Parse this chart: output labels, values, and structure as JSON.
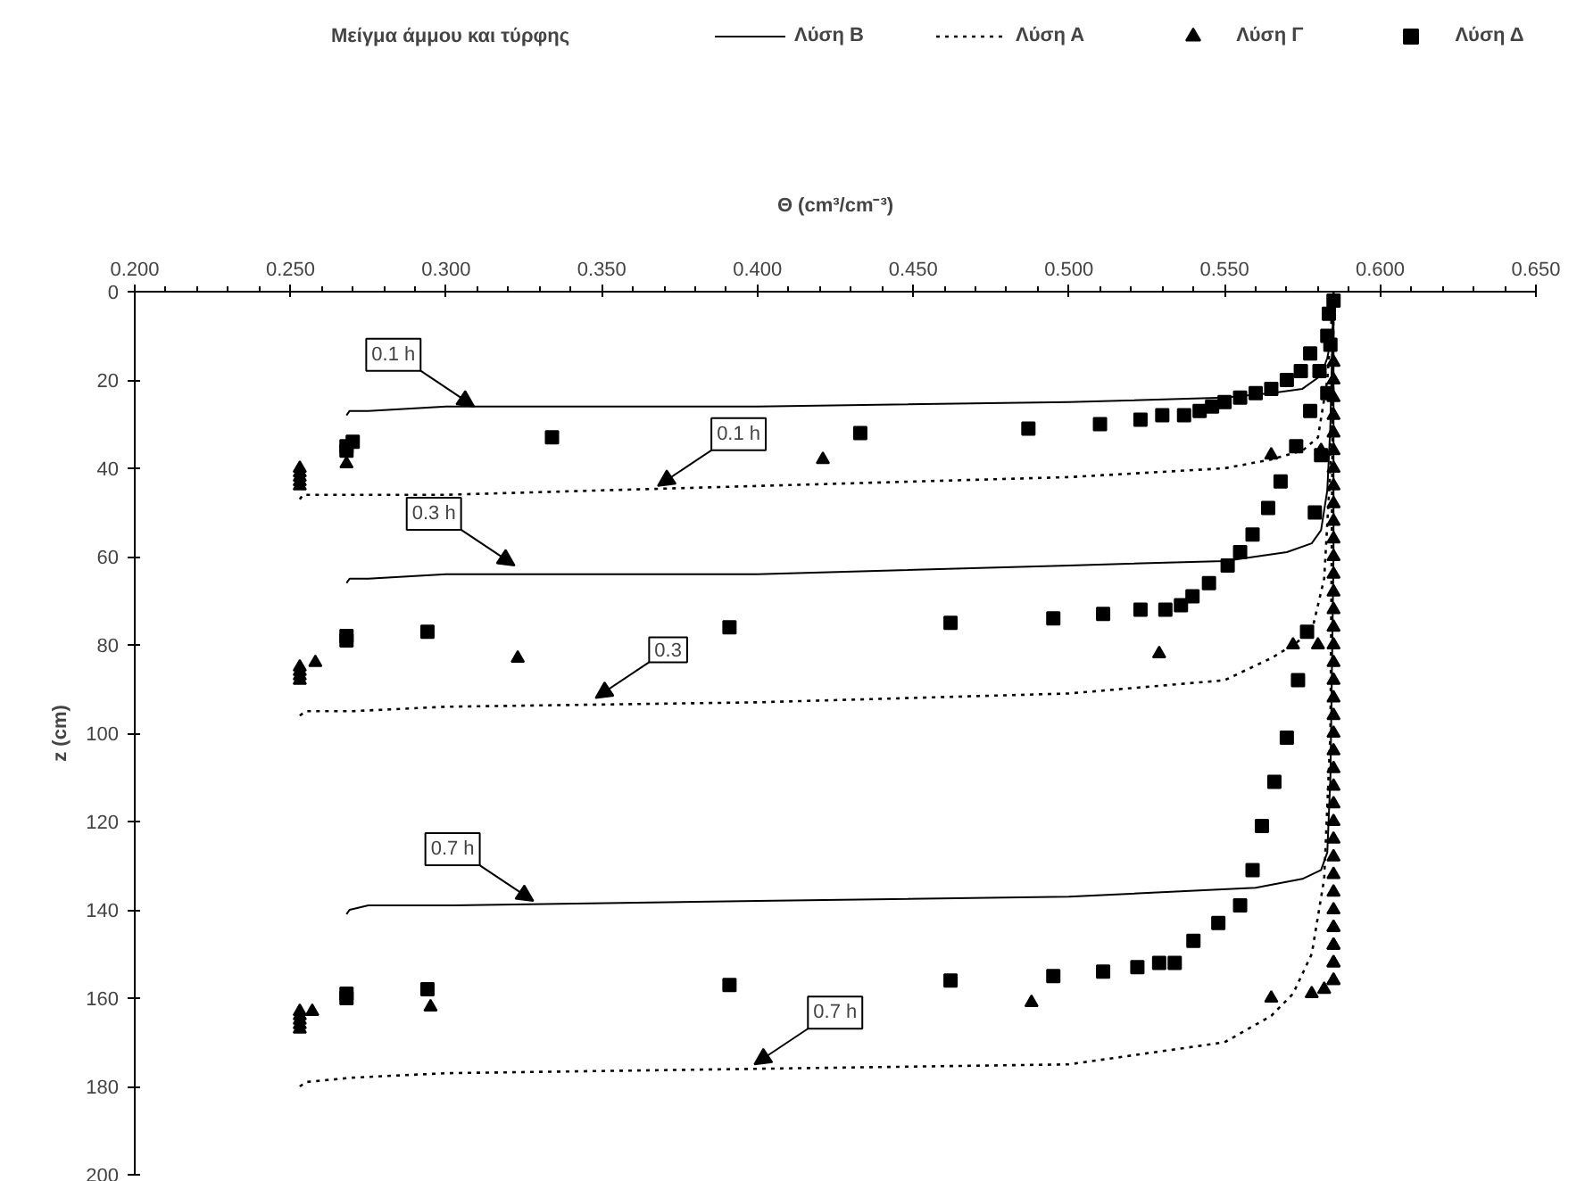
{
  "chart_data": {
    "type": "line",
    "legend_title": "Μείγμα άμμου και τύρφης",
    "xlabel": "Θ (cm³/cm⁻³)",
    "ylabel": "z (cm)",
    "xlim": [
      0.2,
      0.65
    ],
    "ylim": [
      200,
      0
    ],
    "xticks": [
      {
        "value": 0.2,
        "label": "0.200"
      },
      {
        "value": 0.25,
        "label": "0.250"
      },
      {
        "value": 0.3,
        "label": "0.300"
      },
      {
        "value": 0.35,
        "label": "0.350"
      },
      {
        "value": 0.4,
        "label": "0.400"
      },
      {
        "value": 0.45,
        "label": "0.450"
      },
      {
        "value": 0.5,
        "label": "0.500"
      },
      {
        "value": 0.55,
        "label": "0.550"
      },
      {
        "value": 0.6,
        "label": "0.600"
      },
      {
        "value": 0.65,
        "label": "0.650"
      }
    ],
    "yticks": [
      0,
      20,
      40,
      60,
      80,
      100,
      120,
      140,
      160,
      180,
      200
    ],
    "grid": false,
    "legend": "top",
    "series": [
      {
        "name": "Λύση Β",
        "line_style": "solid",
        "color": "#000000",
        "x": [
          0.268,
          0.269,
          0.275,
          0.3,
          0.4,
          0.5,
          0.55,
          0.565,
          0.575,
          0.581,
          0.583,
          0.585,
          0.585,
          null,
          0.268,
          0.269,
          0.275,
          0.3,
          0.4,
          0.5,
          0.55,
          0.57,
          0.578,
          0.581,
          0.583,
          0.584,
          0.585,
          null,
          0.268,
          0.269,
          0.275,
          0.3,
          0.4,
          0.5,
          0.56,
          0.575,
          0.581,
          0.583,
          0.584,
          0.585,
          0.585
        ],
        "values": [
          28,
          27,
          27,
          26,
          26,
          25,
          24,
          23,
          22,
          19,
          15,
          8,
          0,
          null,
          66,
          65,
          65,
          64,
          64,
          62,
          61,
          59,
          57,
          54,
          45,
          30,
          0,
          null,
          141,
          140,
          139,
          139,
          138,
          137,
          135,
          133,
          131,
          127,
          110,
          60,
          0
        ]
      },
      {
        "name": "Λύση Α",
        "line_style": "dotted",
        "color": "#000000",
        "x": [
          0.253,
          0.254,
          0.26,
          0.3,
          0.4,
          0.5,
          0.55,
          0.565,
          0.575,
          0.58,
          0.583,
          0.585,
          null,
          0.253,
          0.255,
          0.27,
          0.3,
          0.4,
          0.5,
          0.55,
          0.565,
          0.572,
          0.578,
          0.582,
          0.584,
          0.585,
          null,
          0.253,
          0.255,
          0.27,
          0.3,
          0.4,
          0.5,
          0.55,
          0.565,
          0.572,
          0.578,
          0.582,
          0.584,
          0.585
        ],
        "values": [
          47,
          46,
          46,
          46,
          44,
          42,
          40,
          38,
          36,
          33,
          20,
          0,
          null,
          96,
          95,
          95,
          94,
          93,
          91,
          88,
          83,
          80,
          77,
          65,
          40,
          0,
          null,
          180,
          179,
          178,
          177,
          176,
          175,
          170,
          164,
          159,
          150,
          133,
          100,
          0
        ]
      },
      {
        "name": "Λύση Γ",
        "type": "scatter",
        "marker": "triangle",
        "color": "#000000",
        "x": [
          0.253,
          0.253,
          0.253,
          0.253,
          0.253,
          0.268,
          0.421,
          0.565,
          0.581,
          0.253,
          0.253,
          0.253,
          0.253,
          0.258,
          0.323,
          0.529,
          0.572,
          0.58,
          0.253,
          0.253,
          0.253,
          0.253,
          0.253,
          0.257,
          0.295,
          0.488,
          0.565,
          0.578,
          0.582,
          0.585,
          0.585,
          0.585,
          0.585,
          0.585,
          0.585,
          0.585,
          0.585,
          0.585,
          0.585,
          0.585,
          0.585,
          0.585,
          0.585,
          0.585,
          0.585,
          0.585,
          0.585,
          0.585,
          0.585,
          0.585,
          0.585,
          0.585,
          0.585,
          0.585,
          0.585,
          0.585,
          0.585,
          0.585,
          0.585,
          0.585,
          0.585,
          0.585,
          0.585,
          0.585,
          0.585,
          0.585,
          0.585,
          0.585,
          0.585
        ],
        "values": [
          40,
          41,
          42,
          43,
          44,
          39,
          38,
          37,
          36,
          85,
          86,
          87,
          88,
          84,
          83,
          82,
          80,
          80,
          163,
          164,
          165,
          166,
          167,
          163,
          162,
          161,
          160,
          159,
          158,
          156,
          152,
          148,
          144,
          16,
          20,
          24,
          28,
          32,
          36,
          40,
          44,
          48,
          52,
          56,
          60,
          64,
          68,
          72,
          76,
          80,
          84,
          88,
          92,
          96,
          100,
          104,
          108,
          112,
          116,
          120,
          124,
          128,
          132,
          136,
          140,
          144,
          148,
          152,
          156
        ]
      },
      {
        "name": "Λύση Δ",
        "type": "scatter",
        "marker": "square",
        "color": "#000000",
        "x": [
          0.268,
          0.268,
          0.27,
          0.334,
          0.433,
          0.487,
          0.51,
          0.523,
          0.53,
          0.537,
          0.542,
          0.546,
          0.55,
          0.555,
          0.56,
          0.565,
          0.57,
          0.5745,
          0.5775,
          0.5835,
          0.268,
          0.268,
          0.294,
          0.391,
          0.462,
          0.495,
          0.511,
          0.523,
          0.531,
          0.536,
          0.5397,
          0.545,
          0.551,
          0.555,
          0.559,
          0.564,
          0.568,
          0.573,
          0.5775,
          0.5805,
          0.583,
          0.585,
          0.268,
          0.268,
          0.294,
          0.391,
          0.462,
          0.495,
          0.511,
          0.522,
          0.529,
          0.534,
          0.54,
          0.548,
          0.555,
          0.559,
          0.562,
          0.566,
          0.57,
          0.5736,
          0.5765,
          0.579,
          0.581,
          0.583,
          0.584
        ],
        "values": [
          36,
          35,
          34,
          33,
          32,
          31,
          30,
          29,
          28,
          28,
          27,
          26,
          25,
          24,
          23,
          22,
          20,
          18,
          14,
          5,
          78,
          79,
          77,
          76,
          75,
          74,
          73,
          72,
          72,
          71,
          69,
          66,
          62,
          59,
          55,
          49,
          43,
          35,
          27,
          18,
          10,
          2,
          159,
          160,
          158,
          157,
          156,
          155,
          154,
          153,
          152,
          152,
          147,
          143,
          139,
          131,
          121,
          111,
          101,
          88,
          77,
          50,
          37,
          23,
          12
        ]
      }
    ],
    "annotations": [
      {
        "text": "0.1 h",
        "x": 0.309,
        "y": 26
      },
      {
        "text": "0.1 h",
        "x": 0.368,
        "y": 44
      },
      {
        "text": "0.3 h",
        "x": 0.322,
        "y": 62
      },
      {
        "text": "0.3",
        "x": 0.348,
        "y": 92
      },
      {
        "text": "0.7 h",
        "x": 0.328,
        "y": 138
      },
      {
        "text": "0.7 h",
        "x": 0.399,
        "y": 175
      }
    ]
  }
}
